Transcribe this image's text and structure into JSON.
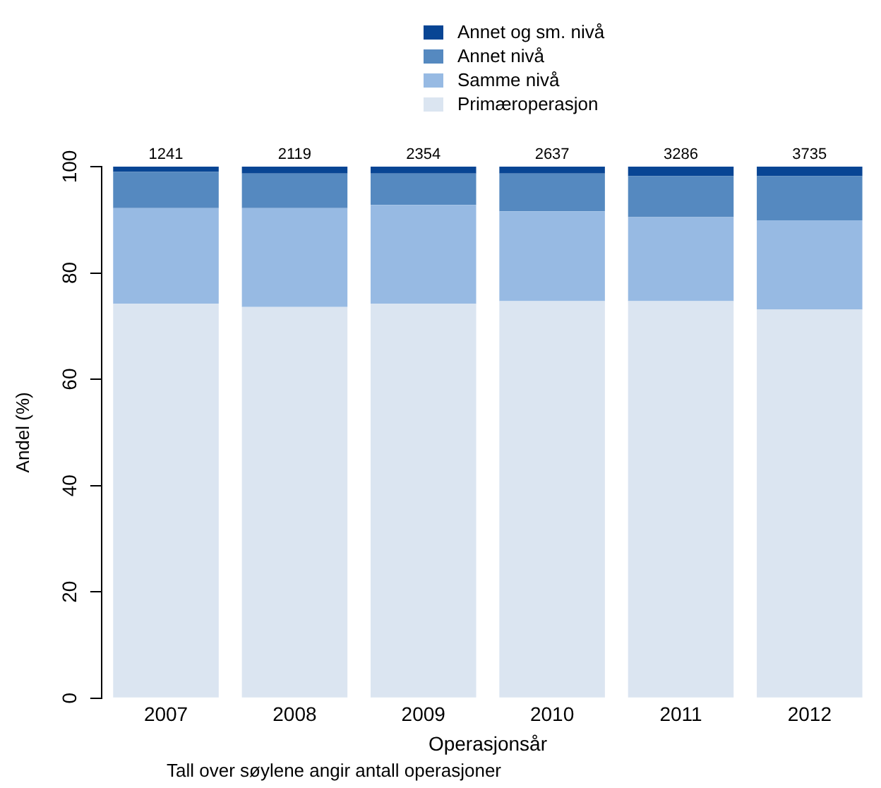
{
  "chart_data": {
    "type": "bar",
    "stacked": true,
    "xlabel": "Operasjonsår",
    "ylabel": "Andel (%)",
    "categories": [
      "2007",
      "2008",
      "2009",
      "2010",
      "2011",
      "2012"
    ],
    "series": [
      {
        "name": "Primæroperasjon",
        "color": "#dbe5f1",
        "values": [
          74.2,
          73.6,
          74.2,
          74.7,
          74.7,
          73.1
        ]
      },
      {
        "name": "Samme nivå",
        "color": "#97bae3",
        "values": [
          18.0,
          18.6,
          18.6,
          16.9,
          15.8,
          16.8
        ]
      },
      {
        "name": "Annet nivå",
        "color": "#5589c0",
        "values": [
          6.8,
          6.5,
          5.9,
          7.1,
          7.7,
          8.3
        ]
      },
      {
        "name": "Annet og sm. nivå",
        "color": "#084594",
        "values": [
          1.0,
          1.3,
          1.3,
          1.3,
          1.8,
          1.8
        ]
      }
    ],
    "ylim": [
      0,
      100
    ],
    "yticks": [
      0,
      20,
      40,
      60,
      80,
      100
    ],
    "grid": false,
    "legend": "top",
    "annotations": [
      {
        "text": "1241",
        "x": "2007",
        "y": 100
      },
      {
        "text": "2119",
        "x": "2008",
        "y": 100
      },
      {
        "text": "2354",
        "x": "2009",
        "y": 100
      },
      {
        "text": "2637",
        "x": "2010",
        "y": 100
      },
      {
        "text": "3286",
        "x": "2011",
        "y": 100
      },
      {
        "text": "3735",
        "x": "2012",
        "y": 100
      },
      "Tall over søylene angir antall operasjoner"
    ]
  }
}
